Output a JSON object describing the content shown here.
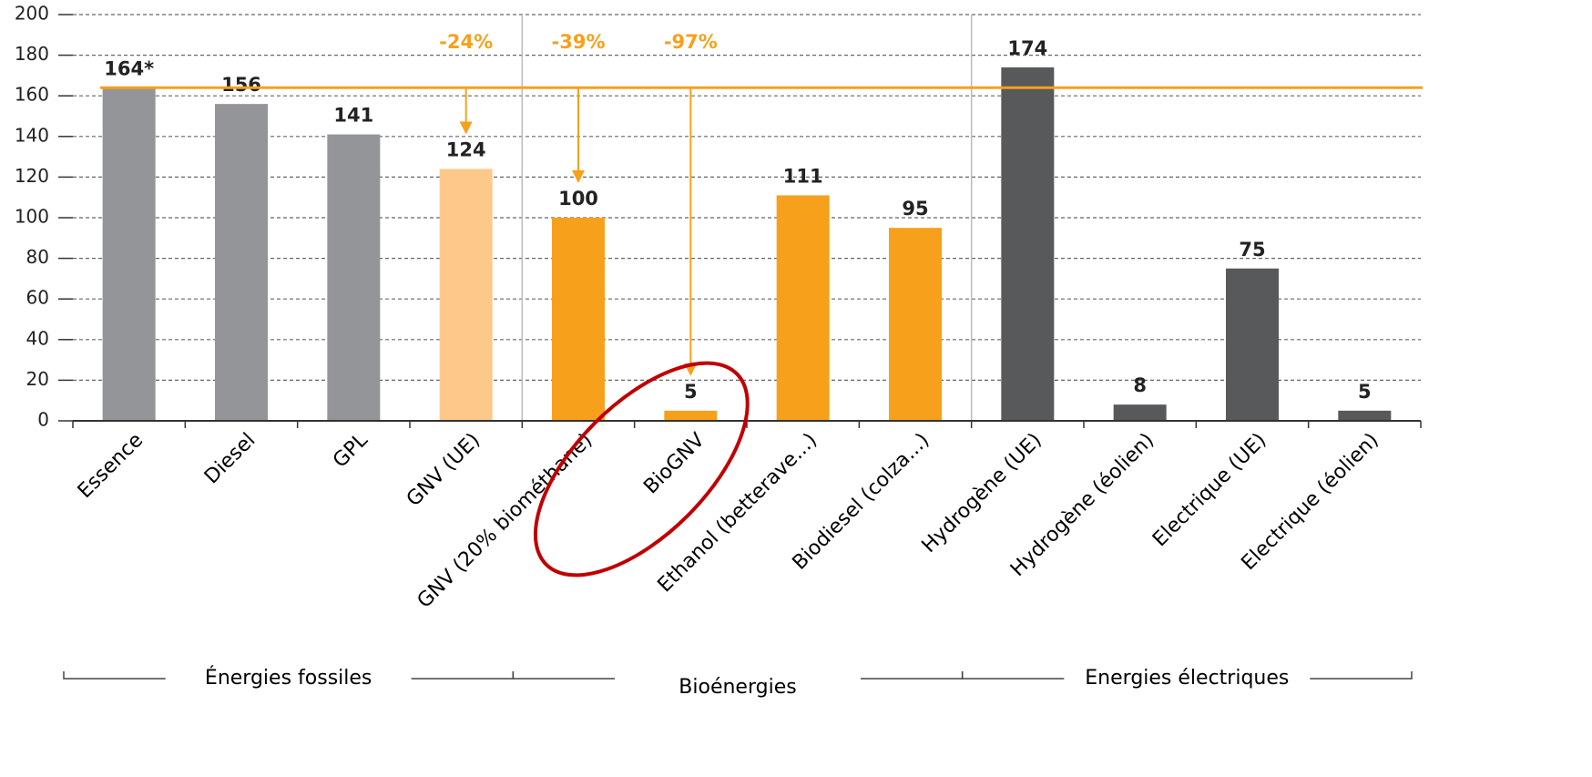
{
  "chart_data": {
    "type": "bar",
    "categories": [
      "Essence",
      "Diesel",
      "GPL",
      "GNV (UE)",
      "GNV (20% biométhane)",
      "BioGNV",
      "Ethanol (betterave...)",
      "Biodiesel (colza...)",
      "Hydrogène (UE)",
      "Hydrogène (éolien)",
      "Electrique (UE)",
      "Electrique (éolien)"
    ],
    "values": [
      164,
      156,
      141,
      124,
      100,
      5,
      111,
      95,
      174,
      8,
      75,
      5
    ],
    "value_labels": [
      "164*",
      "156",
      "141",
      "124",
      "100",
      "5",
      "111",
      "95",
      "174",
      "8",
      "75",
      "5"
    ],
    "colors": [
      "#939598",
      "#939598",
      "#939598",
      "#fdc98a",
      "#f7a01c",
      "#f7a01c",
      "#f7a01c",
      "#f7a01c",
      "#58595b",
      "#58595b",
      "#58595b",
      "#58595b"
    ],
    "ylim": [
      0,
      200
    ],
    "yticks": [
      0,
      20,
      40,
      60,
      80,
      100,
      120,
      140,
      160,
      180,
      200
    ],
    "grid": true,
    "reference_line": {
      "value": 164,
      "color": "#f7a01c"
    },
    "annotations": [
      {
        "label": "-24%",
        "category": "GNV (UE)"
      },
      {
        "label": "-39%",
        "category": "GNV (20% biométhane)"
      },
      {
        "label": "-97%",
        "category": "BioGNV"
      }
    ],
    "highlight": {
      "category": "BioGNV",
      "color": "#c00000"
    },
    "groups": [
      {
        "name": "Énergies fossiles",
        "first": "Essence",
        "last": "GNV (UE)"
      },
      {
        "name": "Bioénergies",
        "first": "GNV (20% biométhane)",
        "last": "Biodiesel (colza...)"
      },
      {
        "name": "Energies électriques",
        "first": "Hydrogène (UE)",
        "last": "Electrique (éolien)"
      }
    ]
  }
}
